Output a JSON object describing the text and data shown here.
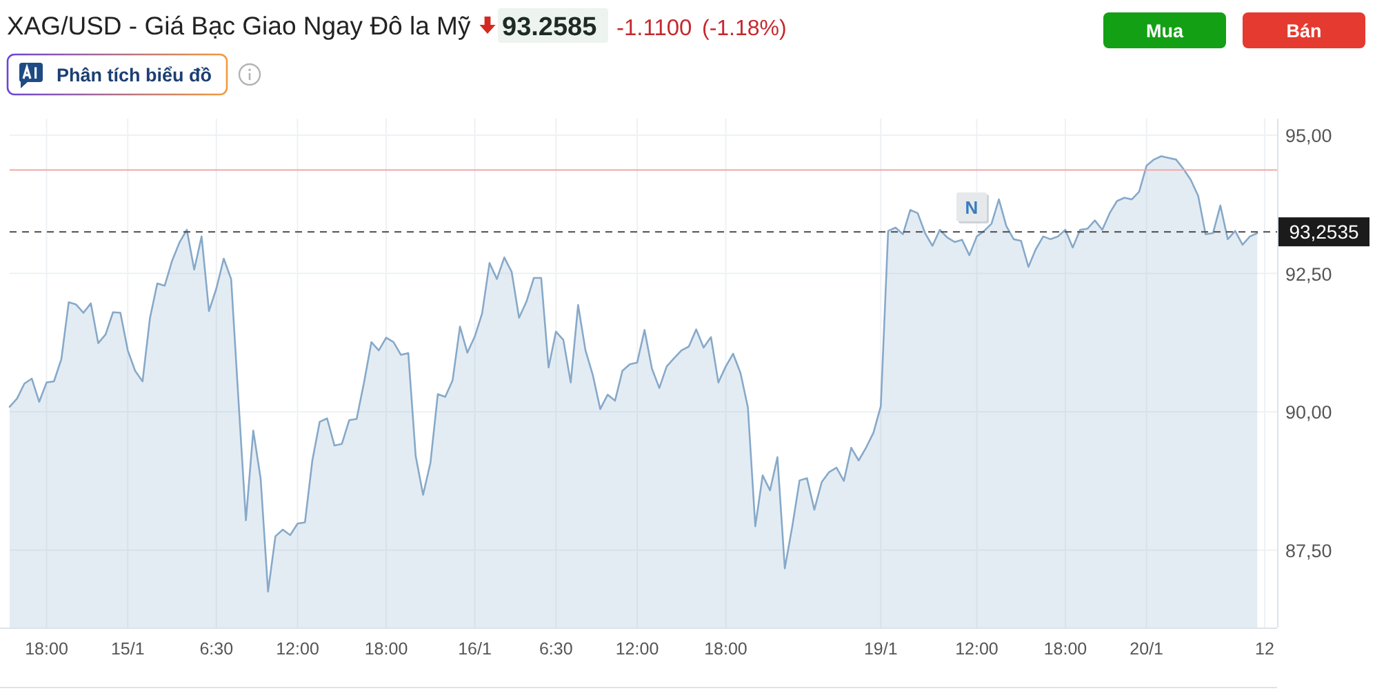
{
  "chart_data": {
    "type": "area",
    "title": "XAG/USD - Giá Bạc Giao Ngay Đô la Mỹ",
    "categories": [
      null,
      null,
      null,
      null,
      null,
      "18:00",
      null,
      null,
      null,
      null,
      null,
      null,
      null,
      null,
      null,
      null,
      "15/1",
      null,
      null,
      null,
      null,
      null,
      null,
      null,
      null,
      null,
      null,
      null,
      "6:30",
      null,
      null,
      null,
      null,
      null,
      null,
      null,
      null,
      null,
      null,
      "12:00",
      null,
      null,
      null,
      null,
      null,
      null,
      null,
      null,
      null,
      null,
      null,
      "18:00",
      null,
      null,
      null,
      null,
      null,
      null,
      null,
      null,
      null,
      null,
      null,
      "16/1",
      null,
      null,
      null,
      null,
      null,
      null,
      null,
      null,
      null,
      null,
      "6:30",
      null,
      null,
      null,
      null,
      null,
      null,
      null,
      null,
      null,
      null,
      "12:00",
      null,
      null,
      null,
      null,
      null,
      null,
      null,
      null,
      null,
      null,
      null,
      "18:00",
      null,
      null,
      null,
      null,
      null,
      null,
      null,
      null,
      null,
      null,
      null,
      null,
      null,
      null,
      null,
      null,
      null,
      null,
      null,
      null,
      "19/1",
      null,
      null,
      null,
      null,
      null,
      null,
      null,
      null,
      null,
      null,
      null,
      null,
      "12:00",
      null,
      null,
      null,
      null,
      null,
      null,
      null,
      null,
      null,
      null,
      null,
      "18:00",
      null,
      null,
      null,
      null,
      null,
      null,
      null,
      null,
      null,
      null,
      "20/1",
      null,
      null,
      null,
      null,
      null,
      null,
      null,
      null,
      null,
      null,
      null,
      null,
      null,
      null,
      null,
      "12"
    ],
    "series": [
      {
        "color": "#86a9c9",
        "values": [
          90.09,
          90.24,
          90.51,
          90.6,
          90.18,
          90.53,
          90.55,
          90.95,
          91.98,
          91.94,
          91.79,
          91.96,
          91.24,
          91.4,
          91.8,
          91.79,
          91.11,
          90.74,
          90.55,
          91.69,
          92.32,
          92.28,
          92.73,
          93.06,
          93.29,
          92.57,
          93.17,
          91.82,
          92.23,
          92.77,
          92.4,
          90.2,
          88.04,
          89.66,
          88.79,
          86.75,
          87.75,
          87.87,
          87.77,
          87.98,
          88.0,
          89.12,
          89.82,
          89.88,
          89.39,
          89.42,
          89.85,
          89.87,
          90.53,
          91.26,
          91.11,
          91.34,
          91.26,
          91.03,
          91.06,
          89.2,
          88.5,
          89.08,
          90.32,
          90.27,
          90.57,
          91.54,
          91.07,
          91.36,
          91.78,
          92.69,
          92.4,
          92.79,
          92.53,
          91.7,
          91.99,
          92.42,
          92.42,
          90.8,
          91.45,
          91.3,
          90.53,
          91.93,
          91.11,
          90.66,
          90.05,
          90.31,
          90.2,
          90.74,
          90.86,
          90.89,
          91.48,
          90.78,
          90.43,
          90.82,
          90.97,
          91.11,
          91.18,
          91.49,
          91.16,
          91.35,
          90.53,
          90.82,
          91.05,
          90.7,
          90.08,
          87.93,
          88.85,
          88.58,
          89.18,
          87.17,
          87.92,
          88.76,
          88.8,
          88.23,
          88.73,
          88.91,
          88.99,
          88.75,
          89.35,
          89.12,
          89.35,
          89.62,
          90.1,
          93.27,
          93.33,
          93.21,
          93.65,
          93.59,
          93.23,
          93.0,
          93.29,
          93.15,
          93.07,
          93.11,
          92.83,
          93.17,
          93.27,
          93.4,
          93.84,
          93.36,
          93.12,
          93.09,
          92.62,
          92.94,
          93.17,
          93.12,
          93.17,
          93.29,
          92.97,
          93.29,
          93.31,
          93.46,
          93.29,
          93.59,
          93.81,
          93.87,
          93.84,
          93.98,
          94.45,
          94.56,
          94.62,
          94.59,
          94.56,
          94.39,
          94.19,
          93.9,
          93.21,
          93.23,
          93.73,
          93.12,
          93.27,
          93.02,
          93.17,
          93.23,
          null
        ]
      }
    ],
    "ylim": [
      86.1,
      95.3
    ],
    "yticks": [
      {
        "value": 95,
        "label": "95,00"
      },
      {
        "value": 92.5,
        "label": "92,50"
      },
      {
        "value": 90,
        "label": "90,00"
      },
      {
        "value": 87.5,
        "label": "87,50"
      }
    ],
    "grid": true,
    "ref_lines": [
      {
        "axis": "y",
        "value": 94.37,
        "color": "#f1a7a7"
      },
      {
        "axis": "y",
        "value": 93.2535,
        "label": "93,2535",
        "color": "#4a4a4a",
        "line_style": "dashed"
      }
    ],
    "annotations": [
      "93.2585",
      "-1.1100",
      "(-1.18%)",
      "Mua",
      "Bán",
      "Phân tích biểu đồ",
      "N"
    ]
  }
}
